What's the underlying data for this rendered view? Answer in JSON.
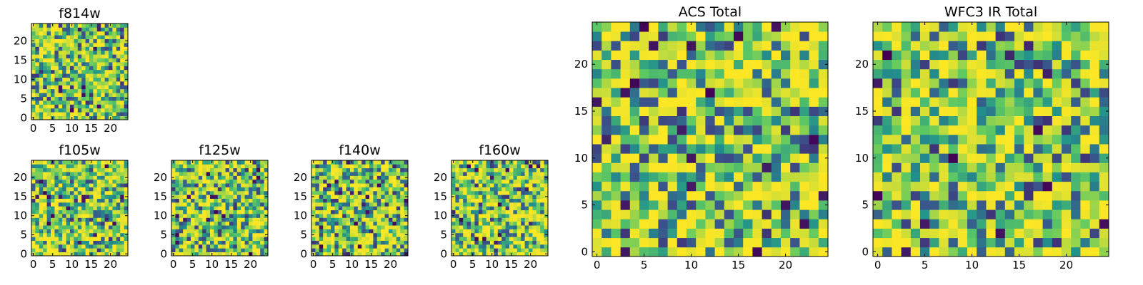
{
  "chart_data": [
    {
      "type": "heatmap",
      "title": "f814w",
      "grid": [
        25,
        25
      ],
      "xlim": [
        0,
        24
      ],
      "ylim": [
        0,
        24
      ],
      "xticks": [
        0,
        5,
        10,
        15,
        20
      ],
      "yticks": [
        0,
        5,
        10,
        15,
        20
      ],
      "colormap": "viridis",
      "seed": 11
    },
    {
      "type": "heatmap",
      "title": "f105w",
      "grid": [
        25,
        25
      ],
      "xlim": [
        0,
        24
      ],
      "ylim": [
        0,
        24
      ],
      "xticks": [
        0,
        5,
        10,
        15,
        20
      ],
      "yticks": [
        0,
        5,
        10,
        15,
        20
      ],
      "colormap": "viridis",
      "seed": 23
    },
    {
      "type": "heatmap",
      "title": "f125w",
      "grid": [
        25,
        25
      ],
      "xlim": [
        0,
        24
      ],
      "ylim": [
        0,
        24
      ],
      "xticks": [
        0,
        5,
        10,
        15,
        20
      ],
      "yticks": [
        0,
        5,
        10,
        15,
        20
      ],
      "colormap": "viridis",
      "seed": 37
    },
    {
      "type": "heatmap",
      "title": "f140w",
      "grid": [
        25,
        25
      ],
      "xlim": [
        0,
        24
      ],
      "ylim": [
        0,
        24
      ],
      "xticks": [
        0,
        5,
        10,
        15,
        20
      ],
      "yticks": [
        0,
        5,
        10,
        15,
        20
      ],
      "colormap": "viridis",
      "seed": 41
    },
    {
      "type": "heatmap",
      "title": "f160w",
      "grid": [
        25,
        25
      ],
      "xlim": [
        0,
        24
      ],
      "ylim": [
        0,
        24
      ],
      "xticks": [
        0,
        5,
        10,
        15,
        20
      ],
      "yticks": [
        0,
        5,
        10,
        15,
        20
      ],
      "colormap": "viridis",
      "seed": 53
    },
    {
      "type": "heatmap",
      "title": "ACS Total",
      "grid": [
        25,
        25
      ],
      "xlim": [
        0,
        24
      ],
      "ylim": [
        0,
        24
      ],
      "xticks": [
        0,
        5,
        10,
        15,
        20
      ],
      "yticks": [
        0,
        5,
        10,
        15,
        20
      ],
      "colormap": "viridis",
      "seed": 67
    },
    {
      "type": "heatmap",
      "title": "WFC3 IR Total",
      "grid": [
        25,
        25
      ],
      "xlim": [
        0,
        24
      ],
      "ylim": [
        0,
        24
      ],
      "xticks": [
        0,
        5,
        10,
        15,
        20
      ],
      "yticks": [
        0,
        5,
        10,
        15,
        20
      ],
      "colormap": "viridis",
      "seed": 79
    }
  ],
  "colors": {
    "viridis": [
      "#440154",
      "#3b528b",
      "#21918c",
      "#5ec962",
      "#fde725"
    ]
  }
}
